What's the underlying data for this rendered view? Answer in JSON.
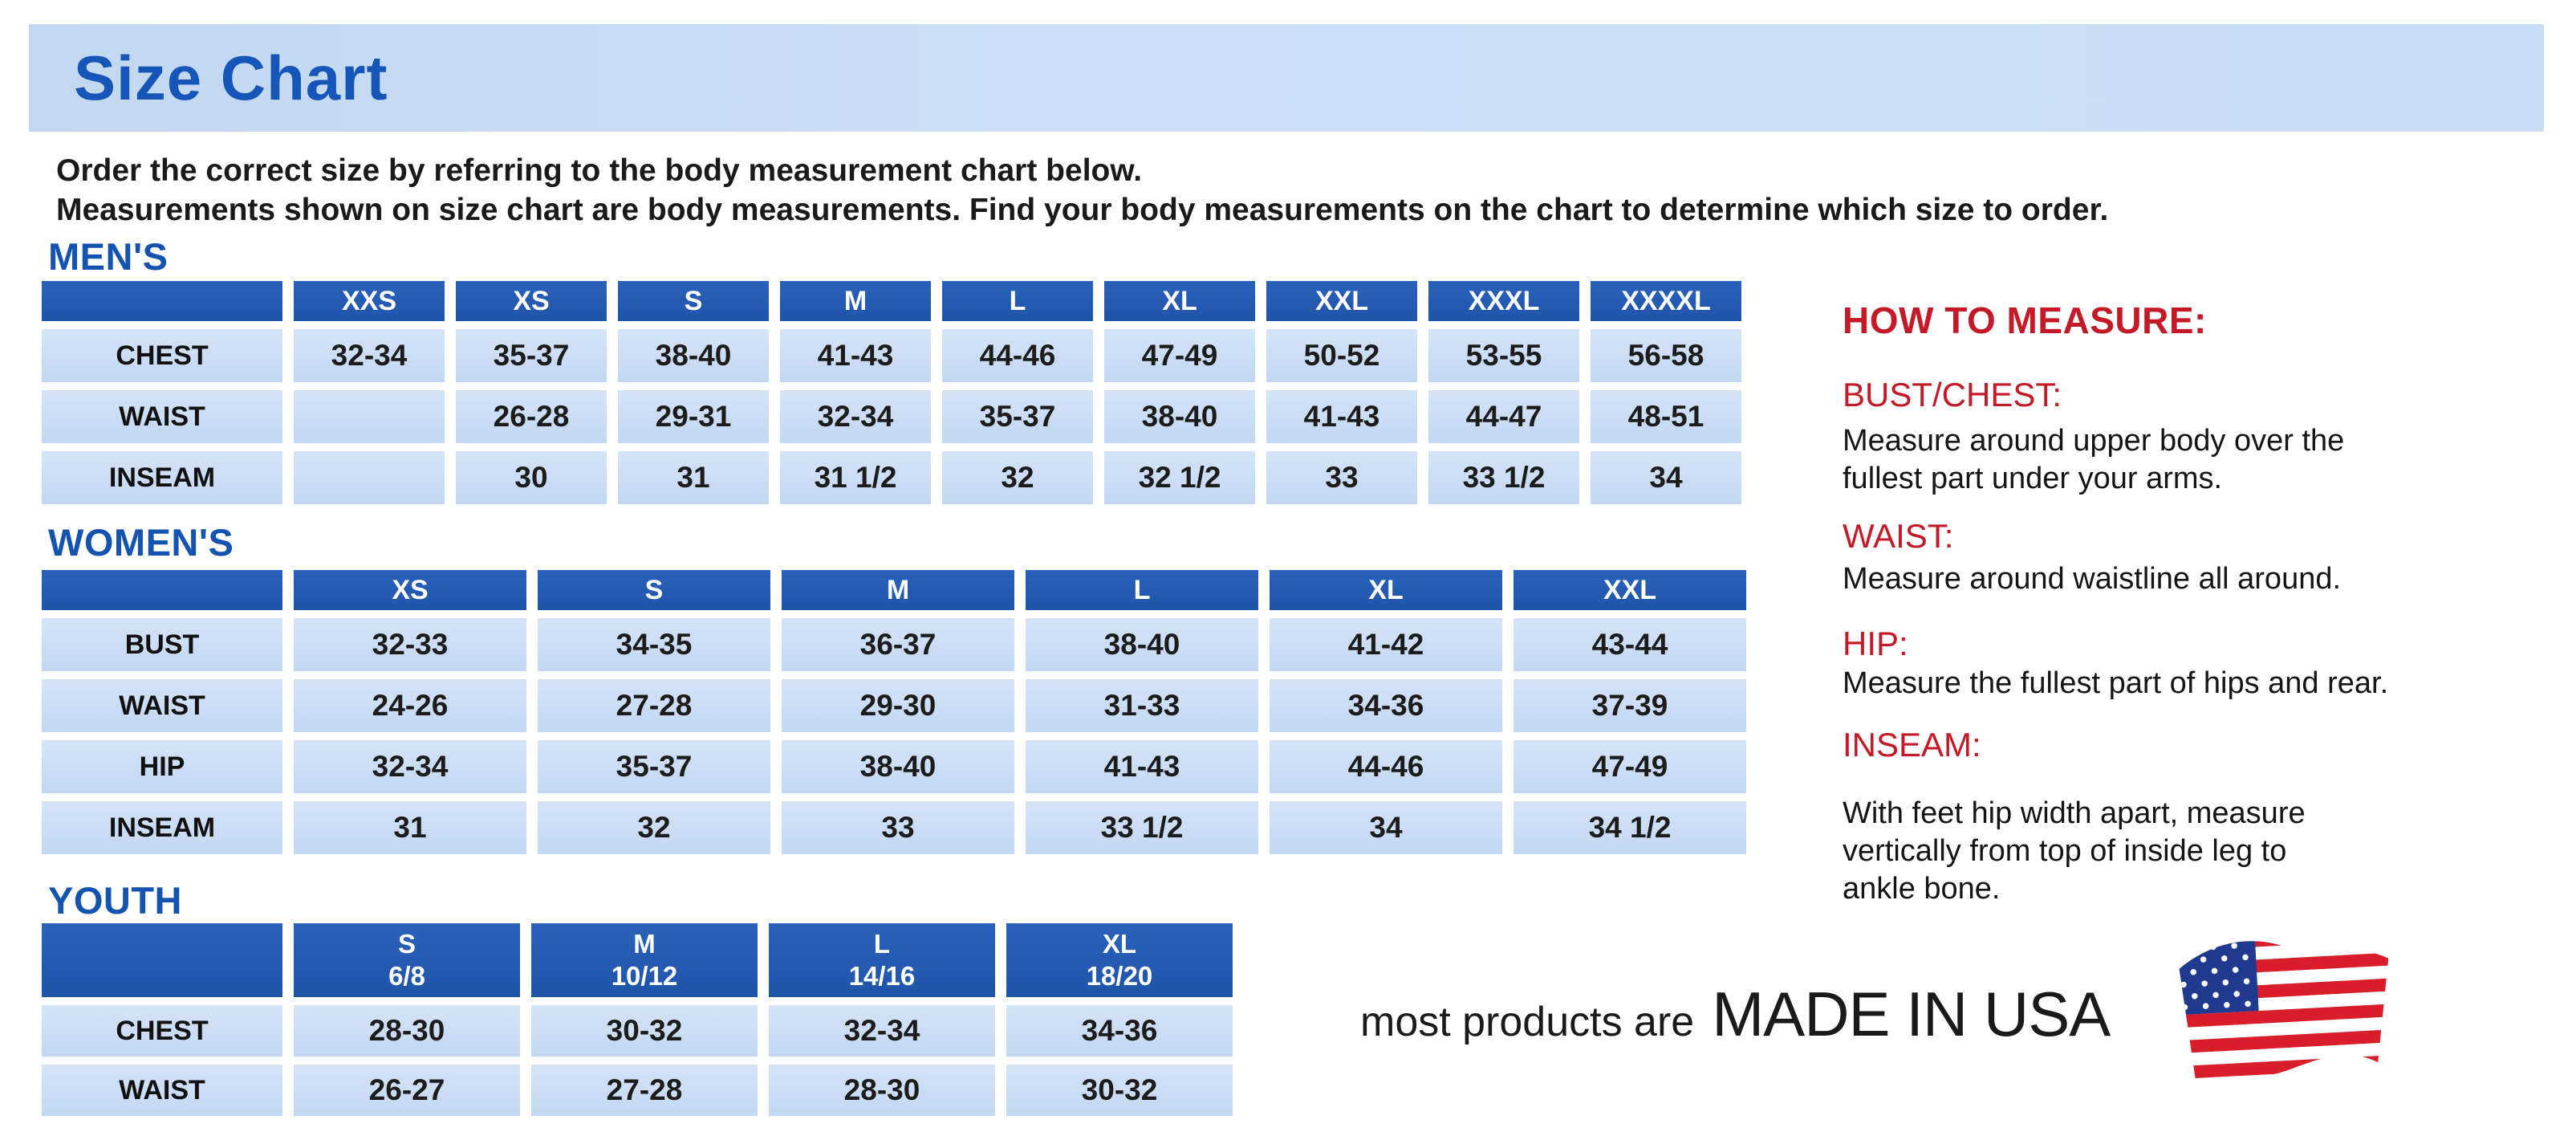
{
  "page": {
    "title": "Size Chart"
  },
  "intro": {
    "line1": "Order the correct size by referring to the body measurement chart below.",
    "line2": "Measurements shown on size chart are body measurements.  Find your body measurements on the chart to determine which size to order."
  },
  "tables": {
    "mens": {
      "heading": "MEN'S",
      "columns": [
        "XXS",
        "XS",
        "S",
        "M",
        "L",
        "XL",
        "XXL",
        "XXXL",
        "XXXXL"
      ],
      "rows": [
        {
          "label": "CHEST",
          "values": [
            "32-34",
            "35-37",
            "38-40",
            "41-43",
            "44-46",
            "47-49",
            "50-52",
            "53-55",
            "56-58"
          ]
        },
        {
          "label": "WAIST",
          "values": [
            "",
            "26-28",
            "29-31",
            "32-34",
            "35-37",
            "38-40",
            "41-43",
            "44-47",
            "48-51"
          ]
        },
        {
          "label": "INSEAM",
          "values": [
            "",
            "30",
            "31",
            "31 1/2",
            "32",
            "32 1/2",
            "33",
            "33 1/2",
            "34"
          ]
        }
      ]
    },
    "womens": {
      "heading": "WOMEN'S",
      "columns": [
        "XS",
        "S",
        "M",
        "L",
        "XL",
        "XXL"
      ],
      "rows": [
        {
          "label": "BUST",
          "values": [
            "32-33",
            "34-35",
            "36-37",
            "38-40",
            "41-42",
            "43-44"
          ]
        },
        {
          "label": "WAIST",
          "values": [
            "24-26",
            "27-28",
            "29-30",
            "31-33",
            "34-36",
            "37-39"
          ]
        },
        {
          "label": "HIP",
          "values": [
            "32-34",
            "35-37",
            "38-40",
            "41-43",
            "44-46",
            "47-49"
          ]
        },
        {
          "label": "INSEAM",
          "values": [
            "31",
            "32",
            "33",
            "33 1/2",
            "34",
            "34 1/2"
          ]
        }
      ]
    },
    "youth": {
      "heading": "YOUTH",
      "columns": [
        {
          "size": "S",
          "range": "6/8"
        },
        {
          "size": "M",
          "range": "10/12"
        },
        {
          "size": "L",
          "range": "14/16"
        },
        {
          "size": "XL",
          "range": "18/20"
        }
      ],
      "rows": [
        {
          "label": "CHEST",
          "values": [
            "28-30",
            "30-32",
            "32-34",
            "34-36"
          ]
        },
        {
          "label": "WAIST",
          "values": [
            "26-27",
            "27-28",
            "28-30",
            "30-32"
          ]
        }
      ]
    }
  },
  "how_to_measure": {
    "title": "HOW TO MEASURE:",
    "items": [
      {
        "heading": "BUST/CHEST:",
        "text": "Measure around upper body over the\nfullest part under your arms."
      },
      {
        "heading": "WAIST:",
        "text": "Measure around waistline all around."
      },
      {
        "heading": "HIP:",
        "text": "Measure the fullest part of hips and rear."
      },
      {
        "heading": "INSEAM:",
        "text": "With feet hip width apart, measure\nvertically from top of inside leg to\nankle bone."
      }
    ]
  },
  "footer": {
    "prefix": "most products are",
    "emphasis": "MADE IN USA",
    "flag_icon": "us-flag-icon"
  },
  "colors": {
    "title_bar_bg": "#c9ddf4",
    "title_text": "#1656b8",
    "section_heading": "#1553b0",
    "table_header_bg": "#2257ae",
    "table_cell_bg": "#c6daf2",
    "accent_red": "#c41927",
    "body_text": "#151515"
  }
}
